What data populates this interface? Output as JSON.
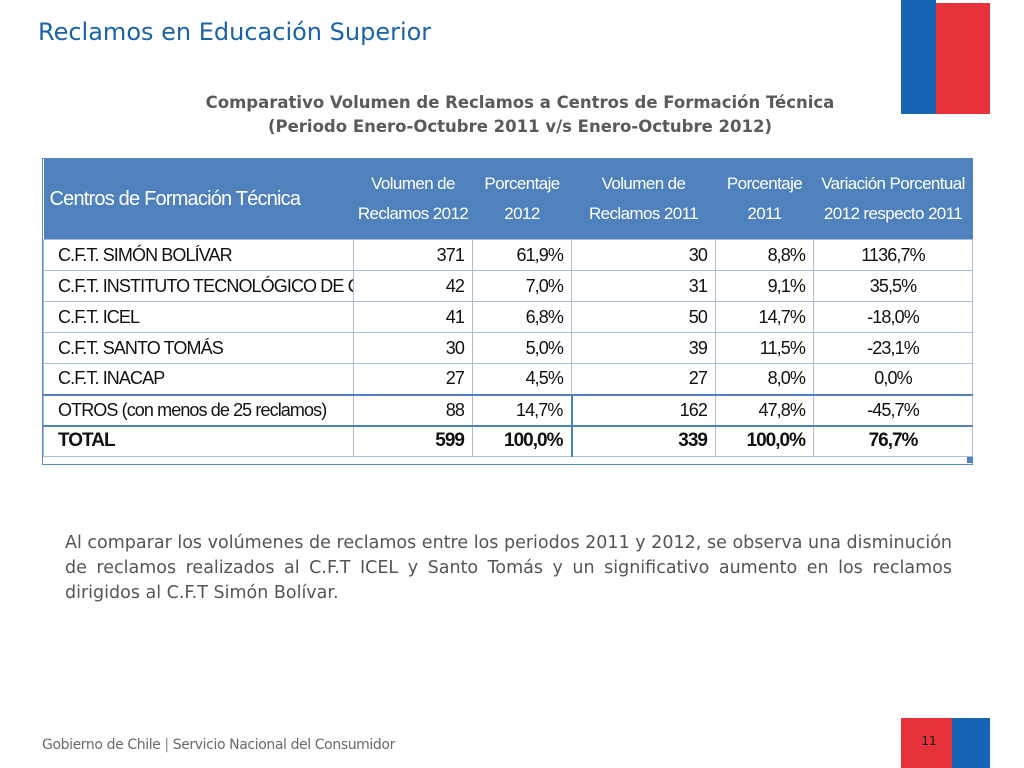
{
  "slide": {
    "title": "Reclamos en Educación Superior",
    "subtitle_line1": "Comparativo Volumen de Reclamos a Centros de Formación Técnica",
    "subtitle_line2": "(Periodo Enero-Octubre 2011 v/s  Enero-Octubre 2012)",
    "paragraph": "Al comparar los volúmenes de reclamos entre los periodos 2011 y 2012, se observa una disminución de reclamos realizados al C.F.T ICEL y Santo Tomás y un significativo aumento en los reclamos dirigidos al C.F.T Simón Bolívar.",
    "page_number": "11"
  },
  "footer": {
    "gov": "Gobierno de Chile",
    "separator": "|",
    "agency": "Servicio Nacional del Consumidor"
  },
  "colors": {
    "title_blue": "#1a63a8",
    "table_header": "#4f81bd",
    "flag_blue": "#1565b4",
    "flag_red": "#e5323b"
  },
  "table": {
    "headers": {
      "center": "Centros de Formación Técnica",
      "vol2012_l1": "Volumen de",
      "vol2012_l2": "Reclamos 2012",
      "pct2012_l1": "Porcentaje",
      "pct2012_l2": "2012",
      "vol2011_l1": "Volumen de",
      "vol2011_l2": "Reclamos 2011",
      "pct2011_l1": "Porcentaje",
      "pct2011_l2": "2011",
      "var_l1": "Variación  Porcentual",
      "var_l2": "2012 respecto 2011"
    },
    "rows": [
      {
        "name": "C.F.T. SIMÓN BOLÍVAR",
        "vol2012": "371",
        "pct2012": "61,9%",
        "vol2011": "30",
        "pct2011": "8,8%",
        "var": "1136,7%"
      },
      {
        "name": "C.F.T. INSTITUTO TECNOLÓGICO DE CHILE",
        "vol2012": "42",
        "pct2012": "7,0%",
        "vol2011": "31",
        "pct2011": "9,1%",
        "var": "35,5%"
      },
      {
        "name": "C.F.T. ICEL",
        "vol2012": "41",
        "pct2012": "6,8%",
        "vol2011": "50",
        "pct2011": "14,7%",
        "var": "-18,0%"
      },
      {
        "name": "C.F.T. SANTO TOMÁS",
        "vol2012": "30",
        "pct2012": "5,0%",
        "vol2011": "39",
        "pct2011": "11,5%",
        "var": "-23,1%"
      },
      {
        "name": "C.F.T. INACAP",
        "vol2012": "27",
        "pct2012": "4,5%",
        "vol2011": "27",
        "pct2011": "8,0%",
        "var": "0,0%"
      },
      {
        "name": "OTROS (con menos de 25 reclamos)",
        "vol2012": "88",
        "pct2012": "14,7%",
        "vol2011": "162",
        "pct2011": "47,8%",
        "var": "-45,7%"
      }
    ],
    "total": {
      "name": "TOTAL",
      "vol2012": "599",
      "pct2012": "100,0%",
      "vol2011": "339",
      "pct2011": "100,0%",
      "var": "76,7%"
    }
  }
}
